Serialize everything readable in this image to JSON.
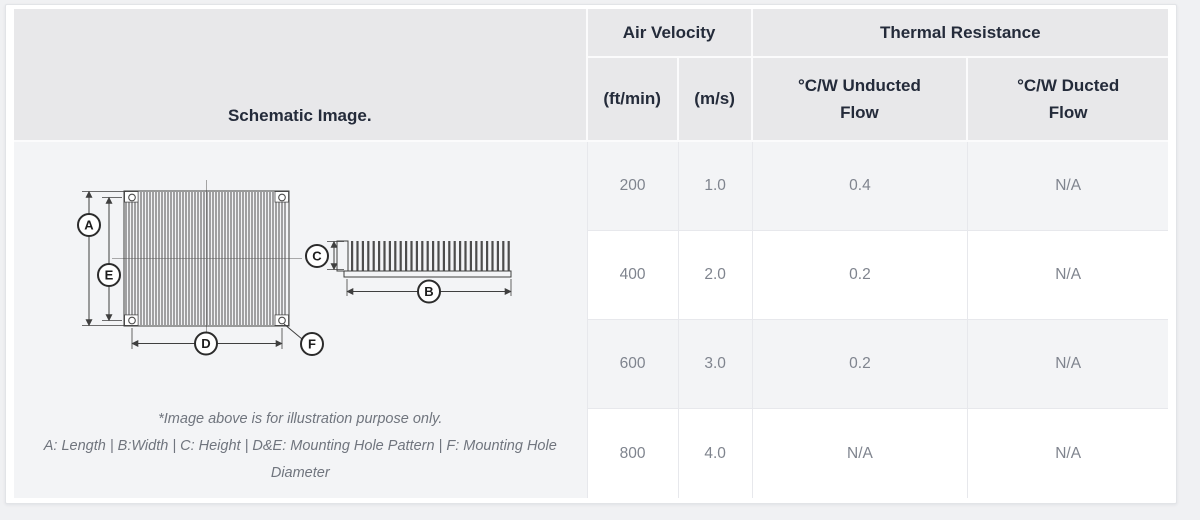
{
  "table": {
    "header": {
      "schematic_label": "Schematic Image.",
      "air_velocity": "Air Velocity",
      "thermal_resistance": "Thermal Resistance",
      "col_ft_min": "(ft/min)",
      "col_m_s": "(m/s)",
      "col_unducted": "°C/W Unducted Flow",
      "col_ducted": "°C/W Ducted Flow"
    },
    "rows": [
      {
        "ft_min": "200",
        "m_s": "1.0",
        "unducted": "0.4",
        "ducted": "N/A"
      },
      {
        "ft_min": "400",
        "m_s": "2.0",
        "unducted": "0.2",
        "ducted": "N/A"
      },
      {
        "ft_min": "600",
        "m_s": "3.0",
        "unducted": "0.2",
        "ducted": "N/A"
      },
      {
        "ft_min": "800",
        "m_s": "4.0",
        "unducted": "N/A",
        "ducted": "N/A"
      }
    ],
    "caption_line1": "*Image above is for illustration purpose only.",
    "caption_line2": "A: Length | B:Width | C: Height | D&E: Mounting Hole Pattern | F: Mounting Hole Diameter"
  },
  "schematic": {
    "labels": {
      "a": "A",
      "b": "B",
      "c": "C",
      "d": "D",
      "e": "E",
      "f": "F"
    }
  },
  "chart_data": {
    "type": "table",
    "columns": [
      "Air Velocity (ft/min)",
      "Air Velocity (m/s)",
      "Thermal Resistance °C/W Unducted Flow",
      "Thermal Resistance °C/W Ducted Flow"
    ],
    "rows": [
      [
        "200",
        "1.0",
        "0.4",
        "N/A"
      ],
      [
        "400",
        "2.0",
        "0.2",
        "N/A"
      ],
      [
        "600",
        "3.0",
        "0.2",
        "N/A"
      ],
      [
        "800",
        "4.0",
        "N/A",
        "N/A"
      ]
    ]
  },
  "colors": {
    "header_bg": "#e8e8ea",
    "stripe_row_bg": "#f3f4f6",
    "header_text": "#242b3a",
    "body_text": "#7f848e",
    "caption_text": "#70757e",
    "page_bg": "#f0f1f3"
  }
}
